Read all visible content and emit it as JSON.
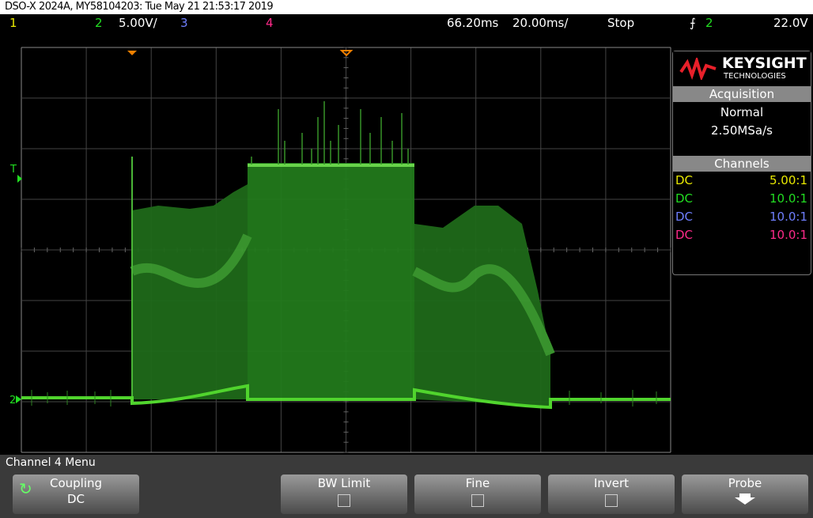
{
  "header": {
    "title": "DSO-X 2024A, MY58104203: Tue May 21 21:53:17 2019"
  },
  "status_bar": {
    "ch1": "1",
    "ch2": "2",
    "ch2_scale": "5.00V/",
    "ch3": "3",
    "ch4": "4",
    "time_delay": "66.20ms",
    "time_scale": "20.00ms/",
    "run_state": "Stop",
    "trigger_source": "2",
    "trigger_level": "22.0V"
  },
  "screen": {
    "trigger_marker": "T",
    "ground_marker": "2"
  },
  "side_panel": {
    "brand": "KEYSIGHT",
    "brand_sub": "TECHNOLOGIES",
    "acquisition": {
      "title": "Acquisition",
      "mode": "Normal",
      "rate": "2.50MSa/s"
    },
    "channels": {
      "title": "Channels",
      "rows": [
        {
          "coupling": "DC",
          "probe": "5.00:1",
          "color": "#e8e800"
        },
        {
          "coupling": "DC",
          "probe": "10.0:1",
          "color": "#22dd22"
        },
        {
          "coupling": "DC",
          "probe": "10.0:1",
          "color": "#6f7fff"
        },
        {
          "coupling": "DC",
          "probe": "10.0:1",
          "color": "#ff2a8a"
        }
      ]
    }
  },
  "menu": {
    "title": "Channel 4 Menu",
    "softkeys": [
      {
        "label": "Coupling",
        "value": "DC"
      },
      {
        "label": "BW Limit"
      },
      {
        "label": "Fine"
      },
      {
        "label": "Invert"
      },
      {
        "label": "Probe"
      }
    ]
  }
}
